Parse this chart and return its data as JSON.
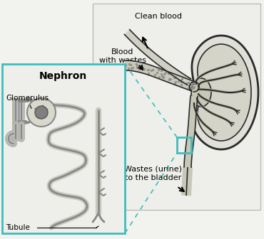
{
  "bg_color": "#f2f2ee",
  "teal_color": "#3dbdbd",
  "dark": "#2a2a2a",
  "mgray": "#888888",
  "lgray": "#bbbbbb",
  "dgray": "#555555",
  "labels": {
    "clean_blood": "Clean blood",
    "blood_with_wastes": "Blood\nwith wastes",
    "wastes_urine": "Wastes (urine)\nto the bladder",
    "nephron": "Nephron",
    "glomerulus": "Glomerulus",
    "tubule": "Tubule"
  },
  "figsize": [
    3.7,
    3.36
  ],
  "dpi": 100
}
